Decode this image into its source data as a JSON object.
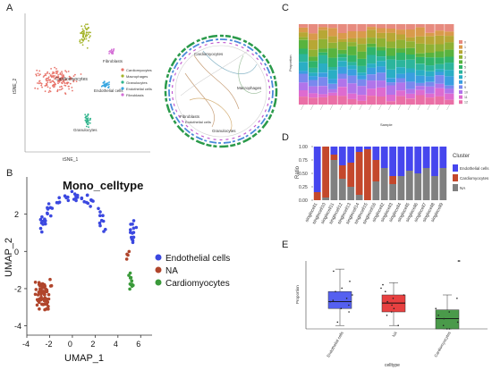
{
  "panel_labels": {
    "a": "A",
    "b": "B",
    "c": "C",
    "d": "D",
    "e": "E"
  },
  "panel_a": {
    "xlabel": "tSNE_1",
    "ylabel": "tSNE_2",
    "cluster_names": [
      "Cardiomyocytes",
      "Macrophages",
      "Fibroblasts",
      "Endothelial cells",
      "Granulocytes"
    ],
    "legend": [
      "Cardiomyocytes",
      "Macrophages",
      "Granulocytes",
      "Endothelial cells",
      "Fibroblasts"
    ],
    "circos_labels": [
      "Cardiomyocytes",
      "Macrophages",
      "Fibroblasts",
      "Endothelial cells",
      "Granulocytes"
    ],
    "colors": {
      "Cardiomyocytes": "#e8736a",
      "Macrophages": "#a4b42a",
      "Granulocytes": "#30b48c",
      "Endothelial cells": "#39a6e0",
      "Fibroblasts": "#d46fd6"
    }
  },
  "panel_b": {
    "title": "Mono_celltype",
    "xlabel": "UMAP_1",
    "ylabel": "UMAP_2",
    "xticks": [
      "-4",
      "-2",
      "0",
      "2",
      "4",
      "6"
    ],
    "yticks": [
      "2",
      "0",
      "-2",
      "-4"
    ],
    "legend": [
      {
        "name": "Endothelial cells",
        "color": "#3b48e0"
      },
      {
        "name": "NA",
        "color": "#b0452c"
      },
      {
        "name": "Cardiomyocytes",
        "color": "#3a9a3a"
      }
    ]
  },
  "panel_c": {
    "ylabel": "Proportion",
    "xlabel": "Sample",
    "n_bars": 16,
    "colors": [
      "#e78b7f",
      "#d99a4b",
      "#b7a735",
      "#8fb134",
      "#58b33e",
      "#30b46a",
      "#2cb59c",
      "#2aaec4",
      "#3a9ee0",
      "#7a88ee",
      "#b174ea",
      "#de6bd0",
      "#ea6fa6"
    ],
    "legend_keys": [
      "0",
      "1",
      "2",
      "3",
      "4",
      "5",
      "6",
      "7",
      "8",
      "9",
      "10",
      "11",
      "12"
    ]
  },
  "chart_data": [
    {
      "type": "bar",
      "stacked": true,
      "title": "",
      "xlabel": "",
      "ylabel": "Ratio",
      "ylim": [
        0,
        1
      ],
      "yticks": [
        "0.00",
        "0.25",
        "0.50",
        "0.75",
        "1.00"
      ],
      "legend_title": "Cluster",
      "categories": [
        "singlecell1",
        "singlecell10",
        "singlecell11",
        "singlecell12",
        "singlecell13",
        "singlecell14",
        "singlecell15",
        "singlecell16",
        "singlecell2",
        "singlecell3",
        "singlecell4",
        "singlecell5",
        "singlecell6",
        "singlecell7",
        "singlecell8",
        "singlecell9"
      ],
      "series": [
        {
          "name": "NA",
          "color": "#808080",
          "values": [
            0.0,
            0.05,
            0.75,
            0.4,
            0.25,
            0.1,
            0.0,
            0.35,
            0.6,
            0.3,
            0.45,
            0.55,
            0.5,
            0.6,
            0.45,
            0.6
          ]
        },
        {
          "name": "Cardiomyocytes",
          "color": "#c4482c",
          "values": [
            0.15,
            0.95,
            0.1,
            0.25,
            0.45,
            0.8,
            0.95,
            0.4,
            0.0,
            0.15,
            0.0,
            0.0,
            0.0,
            0.0,
            0.0,
            0.0
          ]
        },
        {
          "name": "Endothelial cells",
          "color": "#4646ee",
          "values": [
            0.85,
            0.0,
            0.15,
            0.35,
            0.3,
            0.1,
            0.05,
            0.25,
            0.4,
            0.55,
            0.55,
            0.45,
            0.5,
            0.4,
            0.55,
            0.4
          ]
        }
      ]
    },
    {
      "type": "box",
      "title": "",
      "xlabel": "celltype",
      "ylabel": "Proportion",
      "ylim": [
        0,
        1
      ],
      "categories": [
        "Endothelial cells",
        "NA",
        "Cardiomyocytes"
      ],
      "series": [
        {
          "name": "Endothelial cells",
          "color": "#5560f0",
          "min": 0.05,
          "q1": 0.3,
          "median": 0.4,
          "q3": 0.55,
          "max": 0.88,
          "points": [
            0.1,
            0.25,
            0.3,
            0.35,
            0.4,
            0.42,
            0.45,
            0.5,
            0.55,
            0.6,
            0.7,
            0.85
          ]
        },
        {
          "name": "NA",
          "color": "#e84040",
          "min": 0.05,
          "q1": 0.25,
          "median": 0.38,
          "q3": 0.5,
          "max": 0.68,
          "points": [
            0.05,
            0.2,
            0.25,
            0.3,
            0.35,
            0.4,
            0.45,
            0.5,
            0.55,
            0.6,
            0.65
          ]
        },
        {
          "name": "Cardiomyocytes",
          "color": "#4a9a4a",
          "min": 0.0,
          "q1": 0.0,
          "median": 0.15,
          "q3": 0.28,
          "max": 0.5,
          "points": [
            0.0,
            0.0,
            0.05,
            0.1,
            0.15,
            0.2,
            0.25,
            0.3,
            0.45,
            1.0,
            1.0
          ]
        }
      ]
    }
  ]
}
